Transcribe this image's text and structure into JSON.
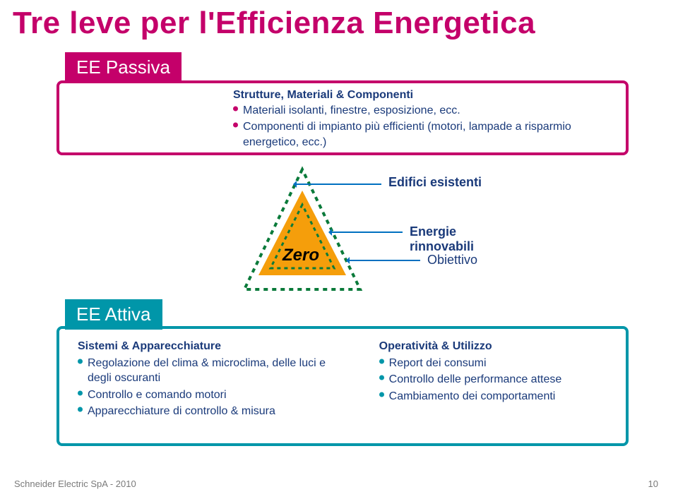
{
  "colors": {
    "title": "#c4006a",
    "passiva_border": "#c4006a",
    "passiva_label_bg": "#c4006a",
    "passiva_text": "#1a3a7a",
    "attiva_border": "#0096a9",
    "attiva_label_bg": "#0096a9",
    "attiva_text": "#1a3a7a",
    "bullet_pink": "#c4006a",
    "bullet_teal": "#0096a9",
    "center_text": "#1a3a7a",
    "triangle_fill": "#f59e0b",
    "triangle_dashed": "#0a7a3a",
    "arrow": "#0070c0",
    "footer": "#7a7a7a"
  },
  "title": "Tre leve per l'Efficienza Energetica",
  "passiva": {
    "label": "EE Passiva",
    "heading": "Strutture, Materiali & Componenti",
    "items": [
      "Materiali isolanti, finestre, esposizione, ecc.",
      "Componenti di impianto più efficienti (motori, lampade a risparmio energetico, ecc.)"
    ]
  },
  "center": {
    "zero": "Zero",
    "edifici": "Edifici esistenti",
    "energie": "Energie rinnovabili",
    "obiettivo": "Obiettivo"
  },
  "attiva": {
    "label": "EE Attiva",
    "left": {
      "heading": "Sistemi & Apparecchiature",
      "items": [
        "Regolazione del clima & microclima, delle luci e degli oscuranti",
        "Controllo e comando motori",
        "Apparecchiature di controllo & misura"
      ]
    },
    "right": {
      "heading": "Operatività & Utilizzo",
      "items": [
        "Report dei consumi",
        "Controllo delle performance attese",
        "Cambiamento dei comportamenti"
      ]
    }
  },
  "footer": "Schneider Electric  SpA - 2010",
  "pagenum": "10"
}
